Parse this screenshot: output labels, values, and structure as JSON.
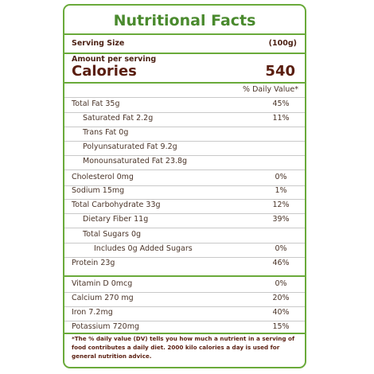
{
  "title": "Nutritional Facts",
  "serving": {
    "label": "Serving Size",
    "value": "(100g)"
  },
  "amount_label": "Amount per serving",
  "calories": {
    "label": "Calories",
    "value": "540"
  },
  "dv_header": "% Daily Value*",
  "nutrients": [
    {
      "label": "Total Fat 35g",
      "value": "45%"
    },
    {
      "label": "Saturated Fat 2.2g",
      "value": "11%"
    },
    {
      "label": "Trans Fat 0g",
      "value": ""
    },
    {
      "label": "Polyunsaturated Fat 9.2g",
      "value": ""
    },
    {
      "label": "Monounsaturated Fat 23.8g",
      "value": ""
    },
    {
      "label": "Cholesterol 0mg",
      "value": "0%"
    },
    {
      "label": "Sodium 15mg",
      "value": "1%"
    },
    {
      "label": "Total Carbohydrate 33g",
      "value": "12%"
    },
    {
      "label": "Dietary Fiber 11g",
      "value": "39%"
    },
    {
      "label": "Total Sugars 0g",
      "value": ""
    },
    {
      "label": "Includes 0g Added Sugars",
      "value": "0%"
    },
    {
      "label": "Protein 23g",
      "value": "46%"
    }
  ],
  "vitamins": [
    {
      "label": "Vitamin D 0mcg",
      "value": "0%"
    },
    {
      "label": "Calcium 270 mg",
      "value": "20%"
    },
    {
      "label": "Iron 7.2mg",
      "value": "40%"
    },
    {
      "label": "Potassium 720mg",
      "value": "15%"
    }
  ],
  "footnote": "*The % daily value (DV) tells you how much a nutrient in a serving of food contributes a daily diet. 2000 kilo calories a day is used for general nutrition advice."
}
